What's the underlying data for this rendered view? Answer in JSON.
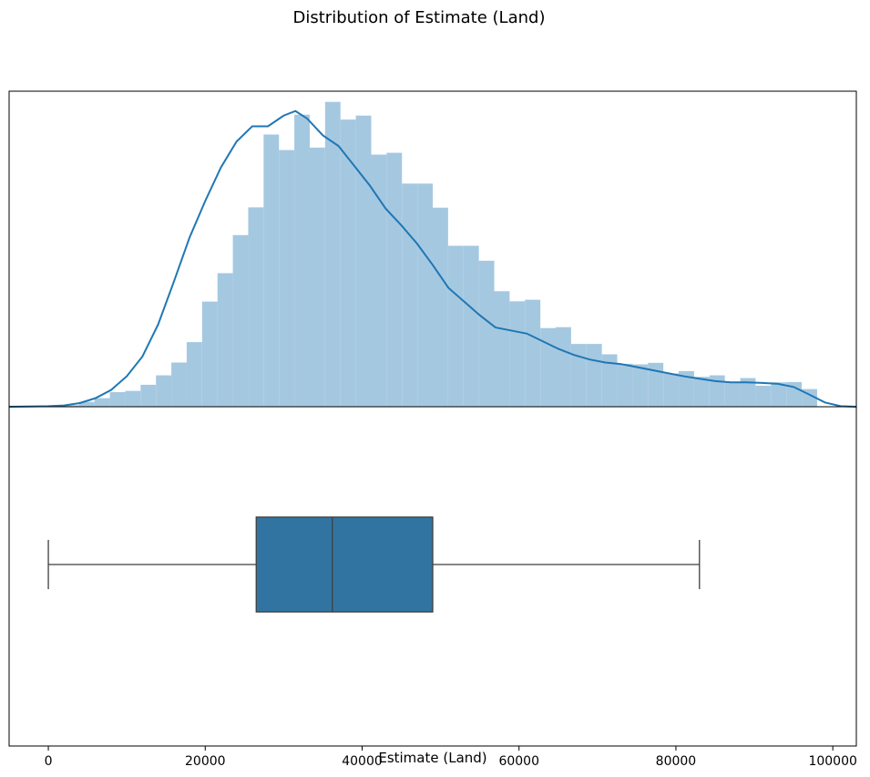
{
  "chart_data": {
    "type": "histogram_with_kde_and_boxplot",
    "title": "Distribution of Estimate (Land)",
    "xlabel": "Estimate (Land)",
    "xlim": [
      -5000,
      103000
    ],
    "x_ticks": [
      0,
      20000,
      40000,
      60000,
      80000,
      100000
    ],
    "x_tick_labels": [
      "0",
      "20000",
      "40000",
      "60000",
      "80000",
      "100000"
    ],
    "histogram": {
      "bin_start": 0,
      "bin_width": 1960,
      "heights": [
        0.02,
        0.05,
        0.16,
        0.28,
        0.48,
        0.52,
        0.72,
        1.03,
        1.45,
        2.12,
        3.45,
        4.38,
        5.63,
        6.54,
        8.93,
        8.42,
        9.58,
        8.5,
        10.0,
        9.42,
        9.55,
        8.27,
        8.33,
        7.32,
        7.32,
        6.53,
        5.28,
        5.28,
        4.79,
        3.79,
        3.46,
        3.51,
        2.58,
        2.61,
        2.06,
        2.06,
        1.72,
        1.41,
        1.39,
        1.44,
        1.09,
        1.17,
        0.98,
        1.03,
        0.82,
        0.94,
        0.69,
        0.8,
        0.81,
        0.58
      ]
    },
    "kde": {
      "x": [
        -5000,
        0,
        2000,
        4000,
        6000,
        8000,
        10000,
        12000,
        14000,
        16000,
        18000,
        20000,
        22000,
        24000,
        26000,
        28000,
        30000,
        31500,
        33000,
        35000,
        37000,
        39000,
        41000,
        43000,
        45000,
        47000,
        49000,
        51000,
        53000,
        55000,
        57000,
        59000,
        61000,
        63000,
        65000,
        67000,
        69000,
        71000,
        73000,
        75000,
        77000,
        79000,
        81000,
        83000,
        85000,
        87000,
        89000,
        91000,
        93000,
        95000,
        97000,
        99000,
        101000,
        103000
      ],
      "y": [
        0.0,
        0.02,
        0.04,
        0.12,
        0.28,
        0.55,
        1.0,
        1.65,
        2.7,
        4.1,
        5.55,
        6.75,
        7.85,
        8.7,
        9.2,
        9.2,
        9.55,
        9.7,
        9.45,
        8.9,
        8.55,
        7.9,
        7.25,
        6.5,
        5.95,
        5.35,
        4.65,
        3.9,
        3.45,
        3.0,
        2.6,
        2.5,
        2.4,
        2.15,
        1.9,
        1.7,
        1.55,
        1.45,
        1.4,
        1.3,
        1.2,
        1.1,
        1.0,
        0.92,
        0.84,
        0.8,
        0.8,
        0.78,
        0.75,
        0.65,
        0.4,
        0.14,
        0.02,
        0.0
      ]
    },
    "boxplot": {
      "whisker_low": 0,
      "q1": 26500,
      "median": 36200,
      "q3": 49000,
      "whisker_high": 83000
    },
    "colors": {
      "bar_fill": "#a5c8e1",
      "kde_line": "#1f77b4",
      "box_fill": "#3274a1",
      "box_edge": "#3f3f3f",
      "axis": "#000000"
    }
  }
}
